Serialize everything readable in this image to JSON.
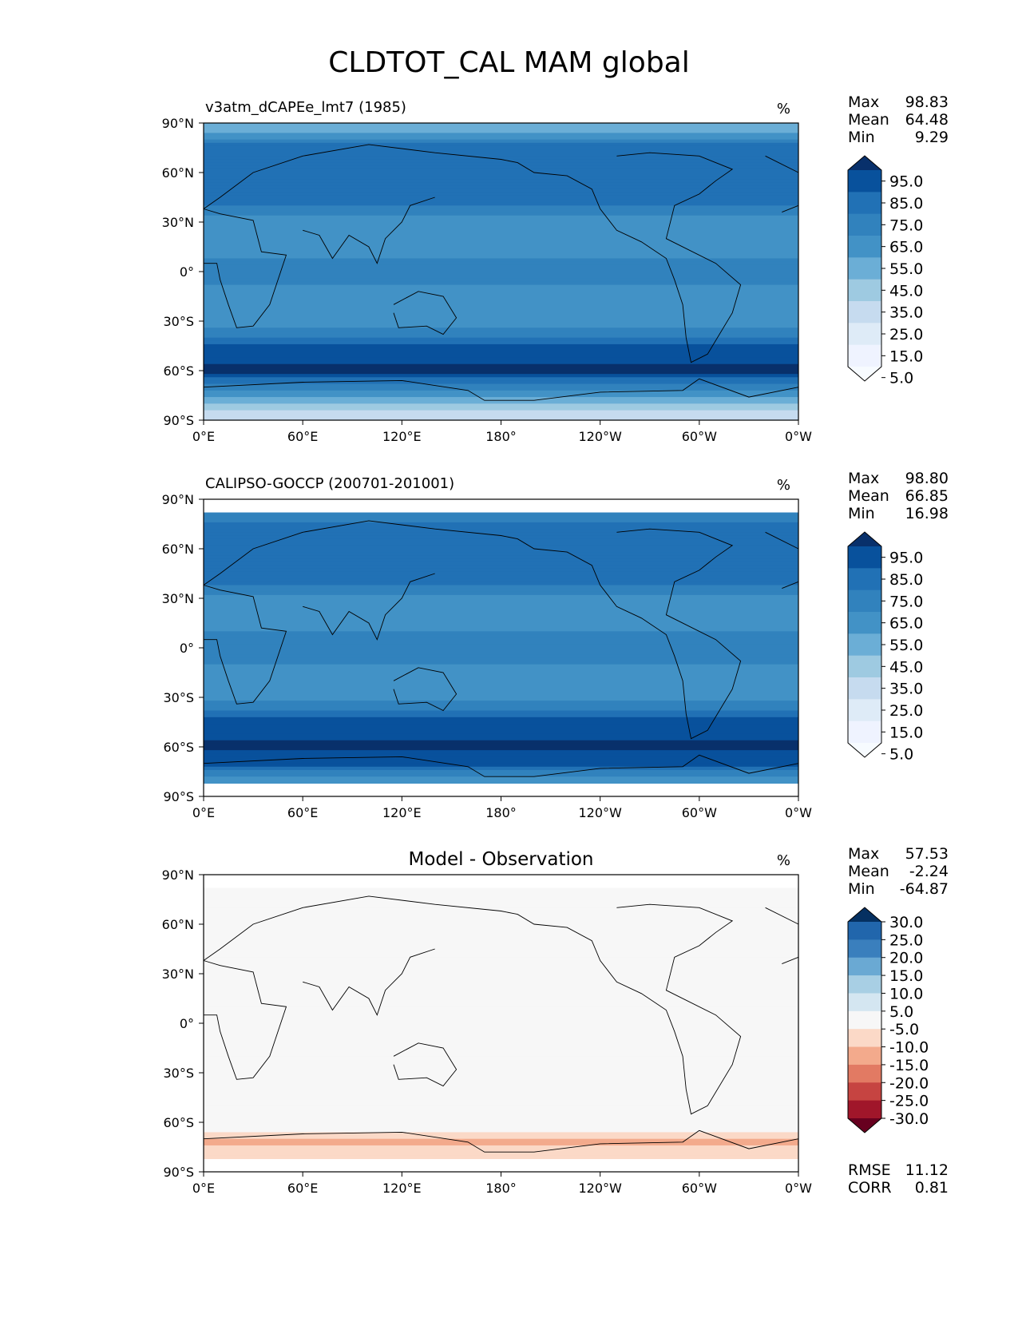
{
  "title": "CLDTOT_CAL MAM global",
  "chart_data": [
    {
      "type": "heatmap",
      "subtitle": "v3atm_dCAPEe_lmt7 (1985)",
      "units": "%",
      "x_ticks": [
        "0°E",
        "60°E",
        "120°E",
        "180°",
        "120°W",
        "60°W",
        "0°W"
      ],
      "y_ticks": [
        "90°N",
        "60°N",
        "30°N",
        "0°",
        "30°S",
        "60°S",
        "90°S"
      ],
      "xlim": [
        0,
        360
      ],
      "ylim": [
        -90,
        90
      ],
      "stats": [
        [
          "Max",
          "98.83"
        ],
        [
          "Mean",
          "64.48"
        ],
        [
          "Min",
          "9.29"
        ]
      ],
      "colorbar": {
        "labels": [
          "95.0",
          "85.0",
          "75.0",
          "65.0",
          "55.0",
          "45.0",
          "35.0",
          "25.0",
          "15.0",
          "5.0"
        ],
        "colors": [
          "#08306b",
          "#08519c",
          "#2171b5",
          "#3182bd",
          "#4292c6",
          "#6baed6",
          "#9ecae1",
          "#c6dbef",
          "#deebf7",
          "#eff3ff",
          "#f7fbff"
        ]
      },
      "zonal_profile": [
        {
          "lat": 85,
          "value": 45
        },
        {
          "lat": 75,
          "value": 78
        },
        {
          "lat": 60,
          "value": 80
        },
        {
          "lat": 45,
          "value": 80
        },
        {
          "lat": 30,
          "value": 52
        },
        {
          "lat": 15,
          "value": 52
        },
        {
          "lat": 0,
          "value": 68
        },
        {
          "lat": -15,
          "value": 52
        },
        {
          "lat": -30,
          "value": 52
        },
        {
          "lat": -45,
          "value": 82
        },
        {
          "lat": -60,
          "value": 93
        },
        {
          "lat": -72,
          "value": 60
        },
        {
          "lat": -85,
          "value": 30
        }
      ]
    },
    {
      "type": "heatmap",
      "subtitle": "CALIPSO-GOCCP (200701-201001)",
      "units": "%",
      "x_ticks": [
        "0°E",
        "60°E",
        "120°E",
        "180°",
        "120°W",
        "60°W",
        "0°W"
      ],
      "y_ticks": [
        "90°N",
        "60°N",
        "30°N",
        "0°",
        "30°S",
        "60°S",
        "90°S"
      ],
      "xlim": [
        0,
        360
      ],
      "ylim": [
        -90,
        90
      ],
      "data_lat_range": [
        -82,
        82
      ],
      "stats": [
        [
          "Max",
          "98.80"
        ],
        [
          "Mean",
          "66.85"
        ],
        [
          "Min",
          "16.98"
        ]
      ],
      "colorbar": {
        "labels": [
          "95.0",
          "85.0",
          "75.0",
          "65.0",
          "55.0",
          "45.0",
          "35.0",
          "25.0",
          "15.0",
          "5.0"
        ],
        "colors": [
          "#08306b",
          "#08519c",
          "#2171b5",
          "#3182bd",
          "#4292c6",
          "#6baed6",
          "#9ecae1",
          "#c6dbef",
          "#deebf7",
          "#eff3ff",
          "#f7fbff"
        ]
      },
      "zonal_profile": [
        {
          "lat": 80,
          "value": 68
        },
        {
          "lat": 60,
          "value": 78
        },
        {
          "lat": 45,
          "value": 80
        },
        {
          "lat": 30,
          "value": 58
        },
        {
          "lat": 15,
          "value": 55
        },
        {
          "lat": 0,
          "value": 68
        },
        {
          "lat": -15,
          "value": 55
        },
        {
          "lat": -30,
          "value": 56
        },
        {
          "lat": -45,
          "value": 84
        },
        {
          "lat": -60,
          "value": 92
        },
        {
          "lat": -72,
          "value": 80
        },
        {
          "lat": -80,
          "value": 52
        }
      ]
    },
    {
      "type": "heatmap",
      "subtitle": "Model - Observation",
      "units": "%",
      "x_ticks": [
        "0°E",
        "60°E",
        "120°E",
        "180°",
        "120°W",
        "60°W",
        "0°W"
      ],
      "y_ticks": [
        "90°N",
        "60°N",
        "30°N",
        "0°",
        "30°S",
        "60°S",
        "90°S"
      ],
      "xlim": [
        0,
        360
      ],
      "ylim": [
        -90,
        90
      ],
      "data_lat_range": [
        -82,
        82
      ],
      "stats": [
        [
          "Max",
          "57.53"
        ],
        [
          "Mean",
          "-2.24"
        ],
        [
          "Min",
          "-64.87"
        ]
      ],
      "extra_stats": [
        [
          "RMSE",
          "11.12"
        ],
        [
          "CORR",
          "0.81"
        ]
      ],
      "colorbar": {
        "labels": [
          "30.0",
          "25.0",
          "20.0",
          "15.0",
          "10.0",
          "5.0",
          "-5.0",
          "-10.0",
          "-15.0",
          "-20.0",
          "-25.0",
          "-30.0"
        ],
        "colors": [
          "#053061",
          "#2166ac",
          "#3a7fbd",
          "#6aa9d3",
          "#a8cfe4",
          "#d4e6f1",
          "#f7f7f7",
          "#fbd9c7",
          "#f3aa8c",
          "#e27a63",
          "#c64441",
          "#a0162a",
          "#67001f"
        ]
      },
      "zonal_profile": [
        {
          "lat": 80,
          "value": 2
        },
        {
          "lat": 60,
          "value": 3
        },
        {
          "lat": 30,
          "value": -4
        },
        {
          "lat": 0,
          "value": -2
        },
        {
          "lat": -30,
          "value": -2
        },
        {
          "lat": -60,
          "value": 1
        },
        {
          "lat": -72,
          "value": -12
        },
        {
          "lat": -78,
          "value": -6
        }
      ]
    }
  ]
}
